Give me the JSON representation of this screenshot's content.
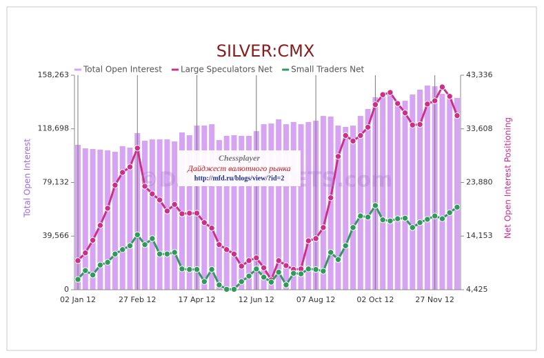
{
  "chart_data": {
    "type": "bar_line",
    "title": "SILVER:CMX",
    "y_label": "Total Open Interest",
    "y2_label": "Net Open Interest Positioning",
    "watermark": "©DAILYMARKETS.com",
    "annotations": [
      "Chessplayer",
      "Дайджест валютного рынка",
      "http://mfd.ru/blogs/view/?id=2"
    ],
    "categories": [
      "02 Jan 12",
      null,
      null,
      null,
      null,
      null,
      null,
      null,
      "27 Feb 12",
      null,
      null,
      null,
      null,
      null,
      null,
      null,
      "17 Apr 12",
      null,
      null,
      null,
      null,
      null,
      null,
      null,
      "12 Jun 12",
      null,
      null,
      null,
      null,
      null,
      null,
      null,
      "07 Aug 12",
      null,
      null,
      null,
      null,
      null,
      null,
      null,
      "02 Oct 12",
      null,
      null,
      null,
      null,
      null,
      null,
      null,
      "27 Nov 12",
      null,
      null,
      null
    ],
    "series": [
      {
        "name": "Total Open Interest",
        "color": "#d6a4f2",
        "kind": "bar",
        "axis": "y",
        "values": [
          106900,
          104300,
          103800,
          103300,
          102800,
          101800,
          105900,
          104800,
          115500,
          109900,
          110900,
          110900,
          110900,
          109400,
          116000,
          114000,
          121100,
          121100,
          122100,
          110400,
          113500,
          114000,
          113500,
          113500,
          117000,
          122100,
          122600,
          125700,
          122100,
          123700,
          122100,
          123700,
          124700,
          128200,
          127700,
          121100,
          120100,
          121100,
          128200,
          133300,
          142000,
          145500,
          146100,
          138400,
          139400,
          144000,
          147600,
          150600,
          150100,
          144500,
          141500,
          141500
        ]
      },
      {
        "name": "Large Speculators Net",
        "color": "#cc2f88",
        "kind": "line",
        "axis": "y2",
        "values": [
          9700,
          11100,
          13400,
          16100,
          19200,
          23400,
          25700,
          26700,
          30100,
          23200,
          21800,
          20700,
          18700,
          19900,
          18200,
          18300,
          18300,
          16600,
          15600,
          12600,
          11700,
          10900,
          8700,
          9700,
          10200,
          8400,
          6200,
          9700,
          8800,
          8100,
          8200,
          13300,
          13700,
          15700,
          21100,
          28600,
          32400,
          31400,
          32400,
          33900,
          38000,
          39800,
          40200,
          38200,
          36500,
          34300,
          34400,
          38100,
          38700,
          41200,
          39500,
          36000
        ]
      },
      {
        "name": "Small Traders Net",
        "color": "#2f9a5c",
        "kind": "line",
        "axis": "y2",
        "values": [
          6300,
          7900,
          7100,
          8900,
          9400,
          10900,
          11700,
          12400,
          14400,
          12600,
          13700,
          10900,
          10900,
          11200,
          8200,
          8100,
          8100,
          5900,
          8100,
          5300,
          4500,
          4500,
          5900,
          6900,
          8200,
          6700,
          5800,
          7600,
          5300,
          7400,
          7300,
          8200,
          8100,
          7800,
          11200,
          9900,
          12400,
          15700,
          17800,
          17600,
          19700,
          17100,
          16900,
          17300,
          17400,
          15700,
          16600,
          17200,
          17800,
          17300,
          18400,
          19400
        ]
      }
    ],
    "ylim": [
      0,
      158263
    ],
    "yticks": [
      0,
      {
        "value": 39566,
        "label": "39,566"
      },
      {
        "value": 79132,
        "label": "79,132"
      },
      {
        "value": 118698,
        "label": "118,698"
      },
      {
        "value": 158263,
        "label": "158,263"
      }
    ],
    "y2lim": [
      4425,
      43336
    ],
    "y2ticks": [
      {
        "value": 4425,
        "label": "4,425"
      },
      {
        "value": 14153,
        "label": "14,153"
      },
      {
        "value": 23880,
        "label": "23,880"
      },
      {
        "value": 33608,
        "label": "33,608"
      },
      {
        "value": 43336,
        "label": "43,336"
      }
    ],
    "legend": "top"
  }
}
